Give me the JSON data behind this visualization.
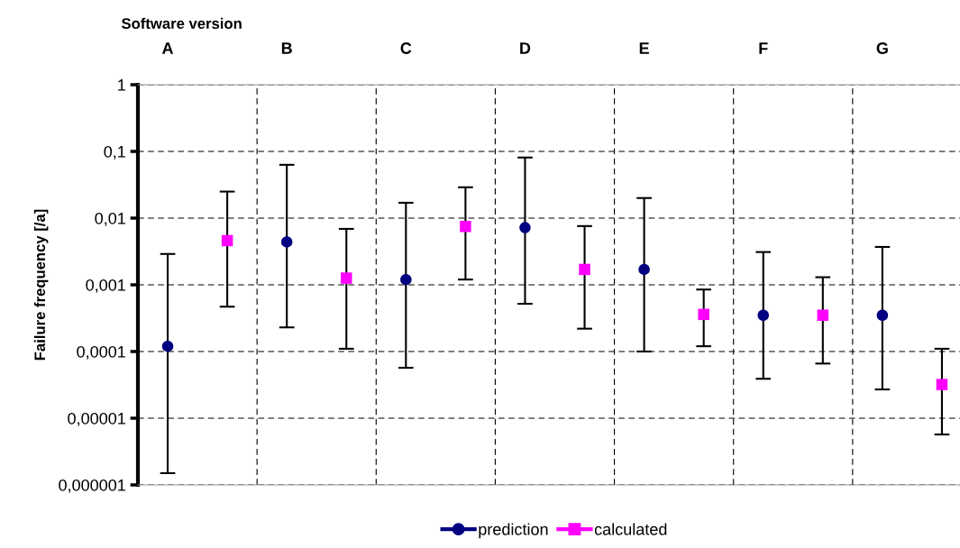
{
  "chart_data": {
    "type": "scatter",
    "xlabel": "Software version",
    "ylabel": "Failure frequency [/a]",
    "categories": [
      "A",
      null,
      "B",
      null,
      "C",
      null,
      "D",
      null,
      "E",
      null,
      "F",
      null,
      "G",
      null
    ],
    "log": "y",
    "ylim": [
      1e-06,
      1
    ],
    "yticks": [
      {
        "value": 1e-06,
        "label": "0,000001"
      },
      {
        "value": 1e-05,
        "label": "0,00001"
      },
      {
        "value": 0.0001,
        "label": "0,0001"
      },
      {
        "value": 0.001,
        "label": "0,001"
      },
      {
        "value": 0.01,
        "label": "0,01"
      },
      {
        "value": 0.1,
        "label": "0,1"
      },
      {
        "value": 1,
        "label": "1"
      }
    ],
    "grid": true,
    "legend": "bottom",
    "series": [
      {
        "name": "prediction",
        "color": "#000080",
        "marker": "circle",
        "values": [
          0.00012,
          null,
          0.0044,
          null,
          0.0012,
          null,
          0.0072,
          null,
          0.0017,
          null,
          0.00035,
          null,
          0.00035,
          null
        ],
        "errors": [
          [
            1.5e-06,
            0.0029
          ],
          null,
          [
            0.00023,
            0.063
          ],
          null,
          [
            5.7e-05,
            0.017
          ],
          null,
          [
            0.00052,
            0.081
          ],
          null,
          [
            0.0001,
            0.02
          ],
          null,
          [
            3.9e-05,
            0.0031
          ],
          null,
          [
            2.7e-05,
            0.0037
          ],
          null
        ]
      },
      {
        "name": "calculated",
        "color": "#ff00ff",
        "marker": "square",
        "values": [
          null,
          0.0046,
          null,
          0.00126,
          null,
          0.0075,
          null,
          0.0017,
          null,
          0.00036,
          null,
          0.00035,
          null,
          3.2e-05
        ],
        "errors": [
          null,
          [
            0.00047,
            0.025
          ],
          null,
          [
            0.00011,
            0.0069
          ],
          null,
          [
            0.0012,
            0.029
          ],
          null,
          [
            0.00022,
            0.0076
          ],
          null,
          [
            0.00012,
            0.00085
          ],
          null,
          [
            6.6e-05,
            0.0013
          ],
          null,
          [
            5.7e-06,
            0.00011
          ]
        ]
      }
    ]
  }
}
